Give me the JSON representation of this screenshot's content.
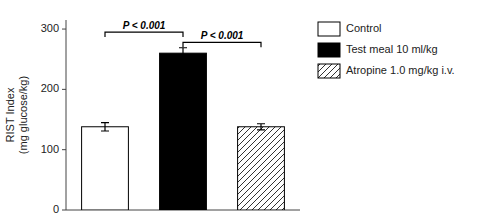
{
  "chart_data": {
    "type": "bar",
    "categories": [
      "Control",
      "Test meal 10 ml/kg",
      "Atropine 1.0 mg/kg i.v."
    ],
    "values": [
      138,
      260,
      138
    ],
    "errors": [
      7,
      9,
      5
    ],
    "colors": [
      "white",
      "black",
      "white"
    ],
    "ylabel": "RIST Index\n(mg glucose/kg)",
    "ylim": [
      0,
      315
    ],
    "yticks": [
      0,
      100,
      200,
      300
    ],
    "tick_labels": "y",
    "legend": "right",
    "annotations": [
      {
        "text": "P < 0.001",
        "from": "Control",
        "to": "Test meal 10 ml/kg",
        "y": 295
      },
      {
        "text": "P < 0.001",
        "from": "Test meal 10 ml/kg",
        "to": "Atropine 1.0 mg/kg i.v.",
        "y": 278
      }
    ]
  }
}
